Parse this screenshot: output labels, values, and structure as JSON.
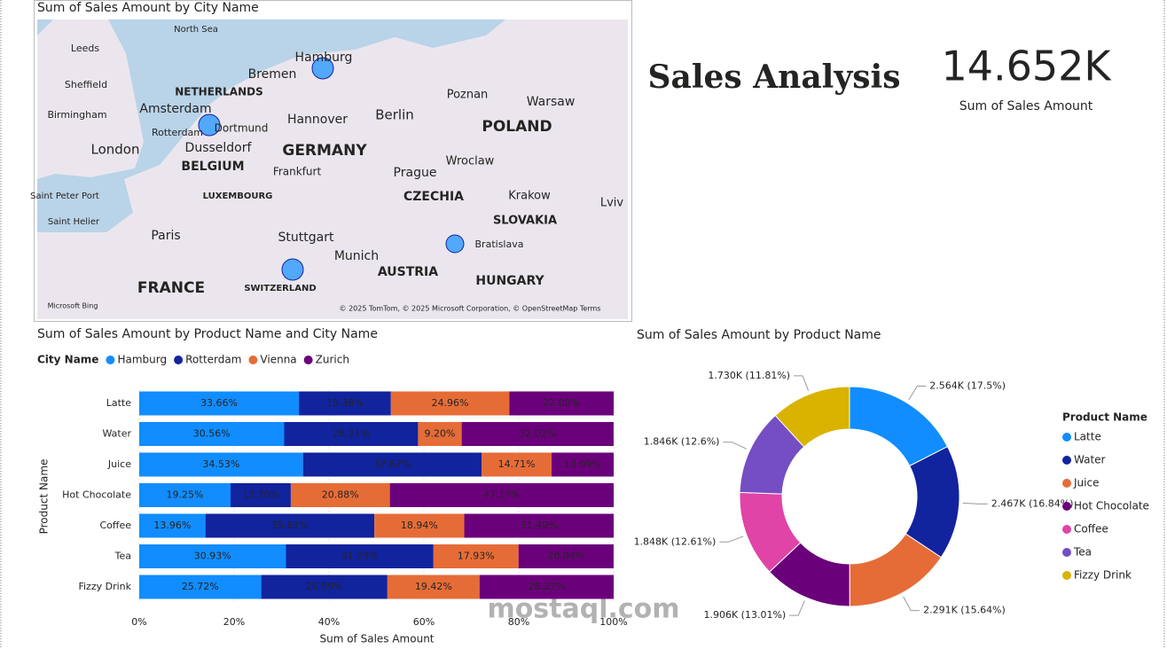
{
  "map": {
    "title": "Sum of Sales Amount by City Name",
    "labels": [
      "North Sea",
      "Leeds",
      "Sheffield",
      "Birmingham",
      "London",
      "Amsterdam",
      "Rotterdam",
      "NETHERLANDS",
      "Hamburg",
      "Bremen",
      "Hannover",
      "Dortmund",
      "Dusseldorf",
      "BELGIUM",
      "GERMANY",
      "Berlin",
      "Poznan",
      "Warsaw",
      "POLAND",
      "Frankfurt",
      "LUXEMBOURG",
      "Prague",
      "Wroclaw",
      "CZECHIA",
      "Krakow",
      "Lviv",
      "SLOVAKIA",
      "Bratislava",
      "Saint Peter Port",
      "Saint Helier",
      "Paris",
      "Stuttgart",
      "Munich",
      "AUSTRIA",
      "HUNGARY",
      "FRANCE",
      "SWITZERLAND"
    ],
    "attribution": "© 2025 TomTom, © 2025 Microsoft Corporation, © OpenStreetMap  Terms",
    "provider": "Microsoft Bing"
  },
  "header": {
    "title": "Sales Analysis"
  },
  "kpi": {
    "value": "14.652K",
    "label": "Sum of Sales Amount"
  },
  "watermark": "mostaql.com",
  "chart_data": [
    {
      "type": "stacked_bar_100",
      "title": "Sum of Sales Amount by Product Name and City Name",
      "legend_title": "City Name",
      "x_label": "Sum of Sales Amount",
      "y_label": "Product Name",
      "categories": [
        "Latte",
        "Water",
        "Juice",
        "Hot Chocolate",
        "Coffee",
        "Tea",
        "Fizzy Drink"
      ],
      "series": [
        {
          "name": "Hamburg",
          "color": "#118DFF",
          "values": [
            33.66,
            30.56,
            34.53,
            19.25,
            13.96,
            30.93,
            25.72
          ],
          "value_labels": [
            "33.66%",
            "30.56%",
            "34.53%",
            "19.25%",
            "13.96%",
            "30.93%",
            "25.72%"
          ]
        },
        {
          "name": "Rotterdam",
          "color": "#12239E",
          "values": [
            19.38,
            28.21,
            37.67,
            12.7,
            35.61,
            31.09,
            26.59
          ],
          "value_labels": [
            "19.38%",
            "28.21%",
            "37.67%",
            "12.70%",
            "35.61%",
            "31.09%",
            "26.59%"
          ]
        },
        {
          "name": "Vienna",
          "color": "#E66C37",
          "values": [
            24.96,
            9.2,
            14.71,
            20.88,
            18.94,
            17.93,
            19.42
          ],
          "value_labels": [
            "24.96%",
            "9.20%",
            "14.71%",
            "20.88%",
            "18.94%",
            "17.93%",
            "19.42%"
          ]
        },
        {
          "name": "Zurich",
          "color": "#6B007B",
          "values": [
            22,
            32.02,
            13.09,
            47.17,
            31.49,
            20.04,
            28.27
          ],
          "value_labels": [
            "22.00%",
            "32.02%",
            "13.09%",
            "47.17%",
            "31.49%",
            "20.04%",
            "28.27%"
          ]
        }
      ],
      "xlim": [
        0,
        100
      ],
      "xticks": [
        {
          "value": 0,
          "label": "0%"
        },
        {
          "value": 20,
          "label": "20%"
        },
        {
          "value": 40,
          "label": "40%"
        },
        {
          "value": 60,
          "label": "60%"
        },
        {
          "value": 80,
          "label": "80%"
        },
        {
          "value": 100,
          "label": "100%"
        }
      ]
    },
    {
      "type": "donut",
      "title": "Sum of Sales Amount by Product Name",
      "legend_title": "Product Name",
      "categories": [
        "Latte",
        "Water",
        "Juice",
        "Hot Chocolate",
        "Coffee",
        "Tea",
        "Fizzy Drink"
      ],
      "values": [
        2.564,
        2.467,
        2.291,
        1.906,
        1.848,
        1.846,
        1.73
      ],
      "value_labels": [
        "2.564K (17.5%)",
        "2.467K (16.84%)",
        "2.291K (15.64%)",
        "1.906K (13.01%)",
        "1.848K (12.61%)",
        "1.846K (12.6%)",
        "1.730K (11.81%)"
      ],
      "colors": [
        "#118DFF",
        "#12239E",
        "#E66C37",
        "#6B007B",
        "#E044A7",
        "#744EC2",
        "#D9B300"
      ]
    }
  ]
}
